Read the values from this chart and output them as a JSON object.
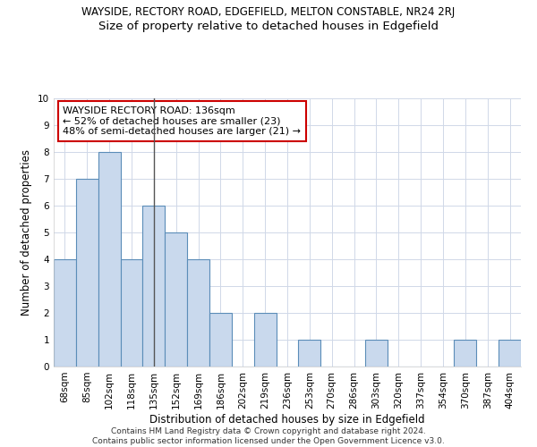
{
  "title": "WAYSIDE, RECTORY ROAD, EDGEFIELD, MELTON CONSTABLE, NR24 2RJ",
  "subtitle": "Size of property relative to detached houses in Edgefield",
  "xlabel": "Distribution of detached houses by size in Edgefield",
  "ylabel": "Number of detached properties",
  "categories": [
    "68sqm",
    "85sqm",
    "102sqm",
    "118sqm",
    "135sqm",
    "152sqm",
    "169sqm",
    "186sqm",
    "202sqm",
    "219sqm",
    "236sqm",
    "253sqm",
    "270sqm",
    "286sqm",
    "303sqm",
    "320sqm",
    "337sqm",
    "354sqm",
    "370sqm",
    "387sqm",
    "404sqm"
  ],
  "values": [
    4,
    7,
    8,
    4,
    6,
    5,
    4,
    2,
    0,
    2,
    0,
    1,
    0,
    0,
    1,
    0,
    0,
    0,
    1,
    0,
    1
  ],
  "bar_color": "#c9d9ed",
  "bar_edge_color": "#5b8db8",
  "highlight_index": 4,
  "highlight_line_color": "#555555",
  "ylim": [
    0,
    10
  ],
  "yticks": [
    0,
    1,
    2,
    3,
    4,
    5,
    6,
    7,
    8,
    9,
    10
  ],
  "annotation_text": "WAYSIDE RECTORY ROAD: 136sqm\n← 52% of detached houses are smaller (23)\n48% of semi-detached houses are larger (21) →",
  "annotation_box_color": "#ffffff",
  "annotation_box_edge": "#cc0000",
  "footer": "Contains HM Land Registry data © Crown copyright and database right 2024.\nContains public sector information licensed under the Open Government Licence v3.0.",
  "grid_color": "#d0d8e8",
  "background_color": "#ffffff",
  "title_fontsize": 8.5,
  "subtitle_fontsize": 9.5,
  "annotation_fontsize": 8,
  "axis_label_fontsize": 8.5,
  "tick_fontsize": 7.5,
  "footer_fontsize": 6.5
}
